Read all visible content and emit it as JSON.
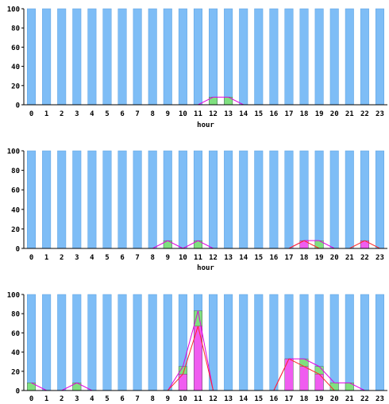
{
  "colors": {
    "background_bar": "#7ebdf6",
    "green_fill": "#7fe07f",
    "magenta_fill": "#f05cf0",
    "magenta_line": "#e000e0",
    "red_line": "#ff2a2a",
    "axis": "#000000"
  },
  "chart_data": [
    {
      "type": "bar",
      "xlabel": "hour",
      "ylim": [
        0,
        100
      ],
      "yticks": [
        "0",
        "20",
        "40",
        "60",
        "80",
        "100"
      ],
      "categories": [
        "0",
        "1",
        "2",
        "3",
        "4",
        "5",
        "6",
        "7",
        "8",
        "9",
        "10",
        "11",
        "12",
        "13",
        "14",
        "15",
        "16",
        "17",
        "18",
        "19",
        "20",
        "21",
        "22",
        "23"
      ],
      "background_values": [
        100,
        100,
        100,
        100,
        100,
        100,
        100,
        100,
        100,
        100,
        100,
        100,
        100,
        100,
        100,
        100,
        100,
        100,
        100,
        100,
        100,
        100,
        100,
        100
      ],
      "series": [
        {
          "color_key": "green_fill",
          "line_key": "magenta_line",
          "values": [
            0,
            0,
            0,
            0,
            0,
            0,
            0,
            0,
            0,
            0,
            0,
            0,
            8,
            8,
            0,
            0,
            0,
            0,
            0,
            0,
            0,
            0,
            0,
            0
          ]
        },
        {
          "color_key": "magenta_fill",
          "line_key": "red_line",
          "values": [
            0,
            0,
            0,
            0,
            0,
            0,
            0,
            0,
            0,
            0,
            0,
            0,
            0,
            0,
            0,
            0,
            0,
            0,
            0,
            0,
            0,
            0,
            0,
            0
          ]
        }
      ]
    },
    {
      "type": "bar",
      "xlabel": "hour",
      "ylim": [
        0,
        100
      ],
      "yticks": [
        "0",
        "20",
        "40",
        "60",
        "80",
        "100"
      ],
      "categories": [
        "0",
        "1",
        "2",
        "3",
        "4",
        "5",
        "6",
        "7",
        "8",
        "9",
        "10",
        "11",
        "12",
        "13",
        "14",
        "15",
        "16",
        "17",
        "18",
        "19",
        "20",
        "21",
        "22",
        "23"
      ],
      "background_values": [
        100,
        100,
        100,
        100,
        100,
        100,
        100,
        100,
        100,
        100,
        100,
        100,
        100,
        100,
        100,
        100,
        100,
        100,
        100,
        100,
        100,
        100,
        100,
        100
      ],
      "series": [
        {
          "color_key": "green_fill",
          "line_key": "magenta_line",
          "values": [
            0,
            0,
            0,
            0,
            0,
            0,
            0,
            0,
            0,
            8,
            0,
            8,
            0,
            0,
            0,
            0,
            0,
            0,
            8,
            8,
            0,
            0,
            0,
            0
          ]
        },
        {
          "color_key": "magenta_fill",
          "line_key": "red_line",
          "values": [
            0,
            0,
            0,
            0,
            0,
            0,
            0,
            0,
            0,
            0,
            0,
            0,
            0,
            0,
            0,
            0,
            0,
            0,
            8,
            0,
            0,
            0,
            8,
            0
          ]
        }
      ]
    },
    {
      "type": "bar",
      "xlabel": "",
      "ylim": [
        0,
        100
      ],
      "yticks": [
        "0",
        "20",
        "40",
        "60",
        "80",
        "100"
      ],
      "categories": [
        "0",
        "1",
        "2",
        "3",
        "4",
        "5",
        "6",
        "7",
        "8",
        "9",
        "10",
        "11",
        "12",
        "13",
        "14",
        "15",
        "16",
        "17",
        "18",
        "19",
        "20",
        "21",
        "22",
        "23"
      ],
      "background_values": [
        100,
        100,
        100,
        100,
        100,
        100,
        100,
        100,
        100,
        100,
        100,
        100,
        100,
        100,
        100,
        100,
        100,
        100,
        100,
        100,
        100,
        100,
        100,
        100
      ],
      "series": [
        {
          "color_key": "green_fill",
          "line_key": "magenta_line",
          "values": [
            8,
            0,
            0,
            8,
            0,
            0,
            0,
            0,
            0,
            0,
            25,
            83,
            0,
            0,
            0,
            0,
            0,
            33,
            33,
            25,
            8,
            8,
            0,
            0
          ]
        },
        {
          "color_key": "magenta_fill",
          "line_key": "red_line",
          "values": [
            0,
            0,
            0,
            0,
            0,
            0,
            0,
            0,
            0,
            0,
            17,
            67,
            0,
            0,
            0,
            0,
            0,
            33,
            25,
            17,
            0,
            0,
            0,
            0
          ]
        }
      ]
    }
  ]
}
